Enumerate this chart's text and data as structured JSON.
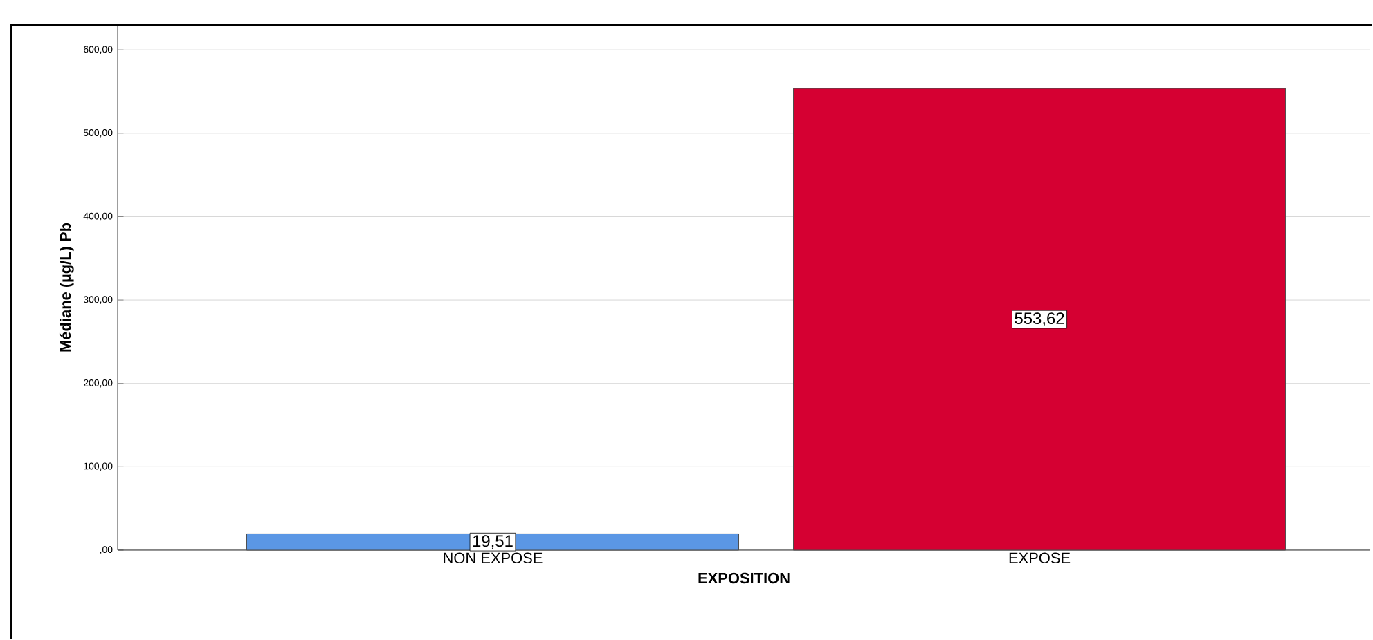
{
  "chart_data": {
    "type": "bar",
    "xlabel": "EXPOSITION",
    "ylabel": "Médiane (µg/L)  Pb",
    "categories": [
      "NON EXPOSE",
      "EXPOSE"
    ],
    "values": [
      19.51,
      553.62
    ],
    "colors": [
      "#5b97e5",
      "#d50032"
    ],
    "value_labels": [
      "19,51",
      "553,62"
    ],
    "ylim": [
      0,
      630
    ],
    "yticks": [
      {
        "value": 0,
        "label": ",00"
      },
      {
        "value": 100,
        "label": "100,00"
      },
      {
        "value": 200,
        "label": "200,00"
      },
      {
        "value": 300,
        "label": "300,00"
      },
      {
        "value": 400,
        "label": "400,00"
      },
      {
        "value": 500,
        "label": "500,00"
      },
      {
        "value": 600,
        "label": "600,00"
      }
    ],
    "grid": "y"
  }
}
